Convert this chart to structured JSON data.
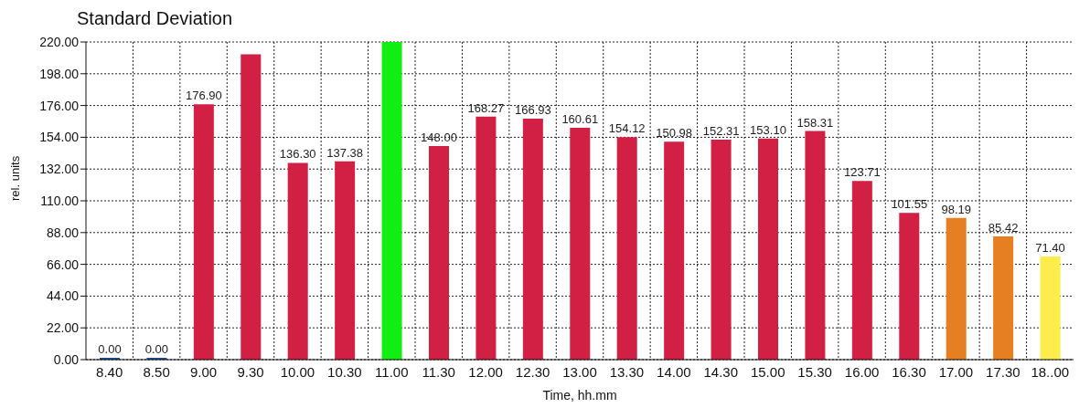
{
  "chart_data": {
    "type": "bar",
    "title": "Standard Deviation",
    "xlabel": "Time, hh.mm",
    "ylabel": "rel. units",
    "categories": [
      "8.40",
      "8.50",
      "9.00",
      "9.30",
      "10.00",
      "10.30",
      "11.00",
      "11.30",
      "12.00",
      "12.30",
      "13.00",
      "13.30",
      "14.00",
      "14.30",
      "15.00",
      "15.30",
      "16.00",
      "16.30",
      "17.00",
      "17.30",
      "18..00"
    ],
    "values": [
      0,
      0,
      176.9,
      211.5,
      136.3,
      137.38,
      220,
      148.0,
      168.27,
      166.93,
      160.61,
      154.12,
      150.98,
      152.31,
      153.1,
      158.31,
      123.71,
      101.55,
      98.19,
      85.42,
      71.4
    ],
    "value_labels": [
      "0.00",
      "0.00",
      "176.90",
      null,
      "136.30",
      "137.38",
      null,
      "148.00",
      "168.27",
      "166.93",
      "160.61",
      "154.12",
      "150.98",
      "152.31",
      "153.10",
      "158.31",
      "123.71",
      "101.55",
      "98.19",
      "85.42",
      "71.40"
    ],
    "colors": [
      "#1f4e9c",
      "#1f4e9c",
      "#d21f44",
      "#d21f44",
      "#d21f44",
      "#d21f44",
      "#11ee11",
      "#d21f44",
      "#d21f44",
      "#d21f44",
      "#d21f44",
      "#d21f44",
      "#d21f44",
      "#d21f44",
      "#d21f44",
      "#d21f44",
      "#d21f44",
      "#d21f44",
      "#e67e22",
      "#e67e22",
      "#fcec4c"
    ],
    "ylim": [
      0,
      220
    ],
    "yticks": [
      {
        "value": 0,
        "label": "0.00"
      },
      {
        "value": 22,
        "label": "22.00"
      },
      {
        "value": 44,
        "label": "44.00"
      },
      {
        "value": 66,
        "label": "66.00"
      },
      {
        "value": 88,
        "label": "88.00"
      },
      {
        "value": 110,
        "label": "110.00"
      },
      {
        "value": 132,
        "label": "132.00"
      },
      {
        "value": 154,
        "label": "154.00"
      },
      {
        "value": 176,
        "label": "176.00"
      },
      {
        "value": 198,
        "label": "198.00"
      },
      {
        "value": 220,
        "label": "220.00"
      }
    ],
    "grid": true
  }
}
